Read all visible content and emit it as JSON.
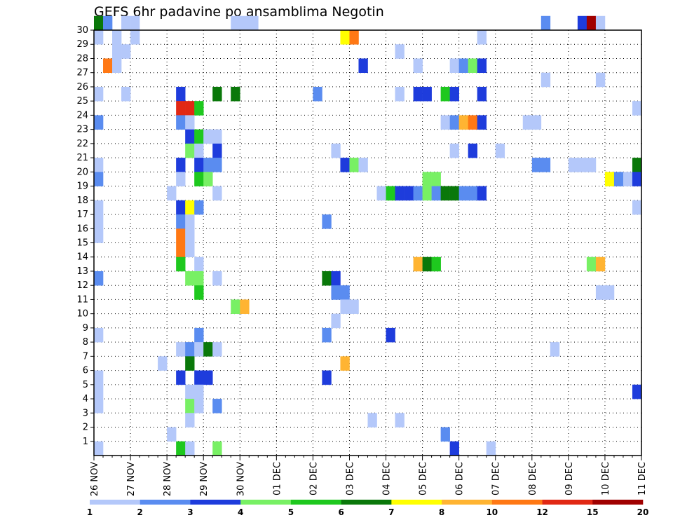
{
  "chart_data": {
    "type": "heatmap",
    "title": "GEFS 6hr padavine po ansamblima Negotin",
    "xlabel": "",
    "ylabel": "",
    "x_tick_labels": [
      "26 NOV",
      "27 NOV",
      "28 NOV",
      "29 NOV",
      "30 NOV",
      "01 DEC",
      "02 DEC",
      "03 DEC",
      "04 DEC",
      "05 DEC",
      "06 DEC",
      "07 DEC",
      "08 DEC",
      "09 DEC",
      "10 DEC",
      "11 DEC"
    ],
    "x_steps_per_day": 4,
    "x_range_steps": [
      0,
      60
    ],
    "y_tick_labels": [
      "1",
      "2",
      "3",
      "4",
      "5",
      "6",
      "7",
      "8",
      "9",
      "10",
      "11",
      "12",
      "13",
      "14",
      "15",
      "16",
      "17",
      "18",
      "19",
      "20",
      "21",
      "22",
      "23",
      "24",
      "25",
      "26",
      "27",
      "28",
      "29",
      "30"
    ],
    "y_range": [
      0,
      30
    ],
    "grid": true,
    "colorbar": {
      "labels": [
        "1",
        "2",
        "3",
        "4",
        "5",
        "6",
        "7",
        "8",
        "10",
        "12",
        "15",
        "20"
      ],
      "colors": [
        "#b4c8fa",
        "#5a8cf0",
        "#1e3cdc",
        "#78f064",
        "#1ec81e",
        "#0a780a",
        "#ffff00",
        "#ffb432",
        "#ff7814",
        "#e12814",
        "#a00000"
      ]
    },
    "cells": [
      [
        1,
        30,
        6
      ],
      [
        2,
        30,
        2
      ],
      [
        4,
        30,
        1
      ],
      [
        5,
        30,
        1
      ],
      [
        16,
        30,
        1
      ],
      [
        17,
        30,
        1
      ],
      [
        18,
        30,
        1
      ],
      [
        50,
        30,
        2
      ],
      [
        54,
        30,
        3
      ],
      [
        55,
        30,
        11
      ],
      [
        56,
        30,
        1
      ],
      [
        1,
        29,
        1
      ],
      [
        3,
        29,
        1
      ],
      [
        5,
        29,
        1
      ],
      [
        28,
        29,
        7
      ],
      [
        29,
        29,
        9
      ],
      [
        43,
        29,
        1
      ],
      [
        3,
        28,
        1
      ],
      [
        4,
        28,
        1
      ],
      [
        34,
        28,
        1
      ],
      [
        2,
        27,
        9
      ],
      [
        3,
        27,
        1
      ],
      [
        30,
        27,
        3
      ],
      [
        36,
        27,
        1
      ],
      [
        40,
        27,
        1
      ],
      [
        41,
        27,
        2
      ],
      [
        42,
        27,
        4
      ],
      [
        43,
        27,
        3
      ],
      [
        50,
        26,
        1
      ],
      [
        56,
        26,
        1
      ],
      [
        1,
        25,
        1
      ],
      [
        4,
        25,
        1
      ],
      [
        10,
        25,
        3
      ],
      [
        14,
        25,
        6
      ],
      [
        16,
        25,
        6
      ],
      [
        25,
        25,
        2
      ],
      [
        34,
        25,
        1
      ],
      [
        36,
        25,
        3
      ],
      [
        37,
        25,
        3
      ],
      [
        39,
        25,
        5
      ],
      [
        40,
        25,
        3
      ],
      [
        43,
        25,
        3
      ],
      [
        10,
        24,
        10
      ],
      [
        11,
        24,
        10
      ],
      [
        12,
        24,
        5
      ],
      [
        60,
        24,
        1
      ],
      [
        1,
        23,
        2
      ],
      [
        10,
        23,
        2
      ],
      [
        11,
        23,
        1
      ],
      [
        39,
        23,
        1
      ],
      [
        40,
        23,
        2
      ],
      [
        41,
        23,
        8
      ],
      [
        42,
        23,
        9
      ],
      [
        43,
        23,
        3
      ],
      [
        48,
        23,
        1
      ],
      [
        49,
        23,
        1
      ],
      [
        11,
        22,
        3
      ],
      [
        12,
        22,
        5
      ],
      [
        13,
        22,
        1
      ],
      [
        14,
        22,
        1
      ],
      [
        11,
        21,
        4
      ],
      [
        12,
        21,
        1
      ],
      [
        14,
        21,
        3
      ],
      [
        27,
        21,
        1
      ],
      [
        40,
        21,
        1
      ],
      [
        42,
        21,
        3
      ],
      [
        45,
        21,
        1
      ],
      [
        1,
        20,
        1
      ],
      [
        10,
        20,
        3
      ],
      [
        12,
        20,
        3
      ],
      [
        13,
        20,
        2
      ],
      [
        14,
        20,
        2
      ],
      [
        28,
        20,
        3
      ],
      [
        29,
        20,
        4
      ],
      [
        30,
        20,
        1
      ],
      [
        49,
        20,
        2
      ],
      [
        50,
        20,
        2
      ],
      [
        53,
        20,
        1
      ],
      [
        54,
        20,
        1
      ],
      [
        55,
        20,
        1
      ],
      [
        60,
        20,
        6
      ],
      [
        1,
        19,
        2
      ],
      [
        10,
        19,
        1
      ],
      [
        12,
        19,
        5
      ],
      [
        13,
        19,
        4
      ],
      [
        37,
        19,
        4
      ],
      [
        38,
        19,
        4
      ],
      [
        57,
        19,
        7
      ],
      [
        58,
        19,
        2
      ],
      [
        59,
        19,
        1
      ],
      [
        60,
        19,
        3
      ],
      [
        9,
        18,
        1
      ],
      [
        14,
        18,
        1
      ],
      [
        32,
        18,
        1
      ],
      [
        33,
        18,
        5
      ],
      [
        34,
        18,
        3
      ],
      [
        35,
        18,
        3
      ],
      [
        36,
        18,
        2
      ],
      [
        37,
        18,
        4
      ],
      [
        38,
        18,
        2
      ],
      [
        39,
        18,
        6
      ],
      [
        40,
        18,
        6
      ],
      [
        41,
        18,
        2
      ],
      [
        42,
        18,
        2
      ],
      [
        43,
        18,
        3
      ],
      [
        1,
        17,
        1
      ],
      [
        10,
        17,
        3
      ],
      [
        11,
        17,
        7
      ],
      [
        12,
        17,
        2
      ],
      [
        60,
        17,
        1
      ],
      [
        1,
        16,
        1
      ],
      [
        10,
        16,
        2
      ],
      [
        11,
        16,
        1
      ],
      [
        26,
        16,
        2
      ],
      [
        1,
        15,
        1
      ],
      [
        10,
        15,
        9
      ],
      [
        11,
        15,
        1
      ],
      [
        10,
        14,
        9
      ],
      [
        11,
        14,
        1
      ],
      [
        10,
        13,
        5
      ],
      [
        12,
        13,
        1
      ],
      [
        36,
        13,
        8
      ],
      [
        37,
        13,
        6
      ],
      [
        38,
        13,
        5
      ],
      [
        55,
        13,
        4
      ],
      [
        56,
        13,
        8
      ],
      [
        1,
        12,
        2
      ],
      [
        11,
        12,
        4
      ],
      [
        12,
        12,
        4
      ],
      [
        14,
        12,
        1
      ],
      [
        26,
        12,
        6
      ],
      [
        27,
        12,
        3
      ],
      [
        12,
        11,
        5
      ],
      [
        27,
        11,
        2
      ],
      [
        28,
        11,
        2
      ],
      [
        56,
        11,
        1
      ],
      [
        57,
        11,
        1
      ],
      [
        16,
        10,
        4
      ],
      [
        17,
        10,
        8
      ],
      [
        28,
        10,
        1
      ],
      [
        29,
        10,
        1
      ],
      [
        27,
        9,
        1
      ],
      [
        1,
        8,
        1
      ],
      [
        12,
        8,
        2
      ],
      [
        26,
        8,
        2
      ],
      [
        33,
        8,
        3
      ],
      [
        10,
        7,
        1
      ],
      [
        11,
        7,
        2
      ],
      [
        12,
        7,
        1
      ],
      [
        13,
        7,
        6
      ],
      [
        14,
        7,
        1
      ],
      [
        51,
        7,
        1
      ],
      [
        8,
        6,
        1
      ],
      [
        11,
        6,
        6
      ],
      [
        28,
        6,
        8
      ],
      [
        1,
        5,
        1
      ],
      [
        10,
        5,
        3
      ],
      [
        12,
        5,
        3
      ],
      [
        13,
        5,
        3
      ],
      [
        26,
        5,
        3
      ],
      [
        1,
        4,
        1
      ],
      [
        11,
        4,
        1
      ],
      [
        12,
        4,
        1
      ],
      [
        60,
        4,
        3
      ],
      [
        1,
        3,
        1
      ],
      [
        11,
        3,
        4
      ],
      [
        12,
        3,
        1
      ],
      [
        14,
        3,
        2
      ],
      [
        11,
        2,
        1
      ],
      [
        31,
        2,
        1
      ],
      [
        34,
        2,
        1
      ],
      [
        9,
        1,
        1
      ],
      [
        39,
        1,
        2
      ],
      [
        1,
        0,
        1
      ],
      [
        10,
        0,
        5
      ],
      [
        11,
        0,
        1
      ],
      [
        14,
        0,
        4
      ],
      [
        40,
        0,
        3
      ],
      [
        44,
        0,
        1
      ]
    ]
  }
}
